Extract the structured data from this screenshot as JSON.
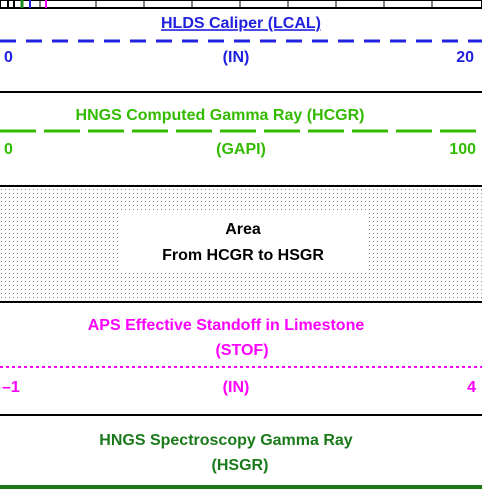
{
  "tracks": [
    {
      "title": "HLDS Caliper (LCAL)",
      "unit": "(IN)",
      "left": "0",
      "right": "20"
    },
    {
      "title": "HNGS Computed Gamma Ray (HCGR)",
      "unit": "(GAPI)",
      "left": "0",
      "right": "100"
    },
    {
      "title_lines": [
        "Area",
        "From HCGR to HSGR"
      ]
    },
    {
      "title_lines": [
        "APS Effective Standoff in Limestone",
        "(STOF)"
      ],
      "unit": "(IN)",
      "left": "–1",
      "right": "4"
    },
    {
      "title_lines": [
        "HNGS Spectroscopy Gamma Ray",
        "(HSGR)"
      ]
    }
  ]
}
